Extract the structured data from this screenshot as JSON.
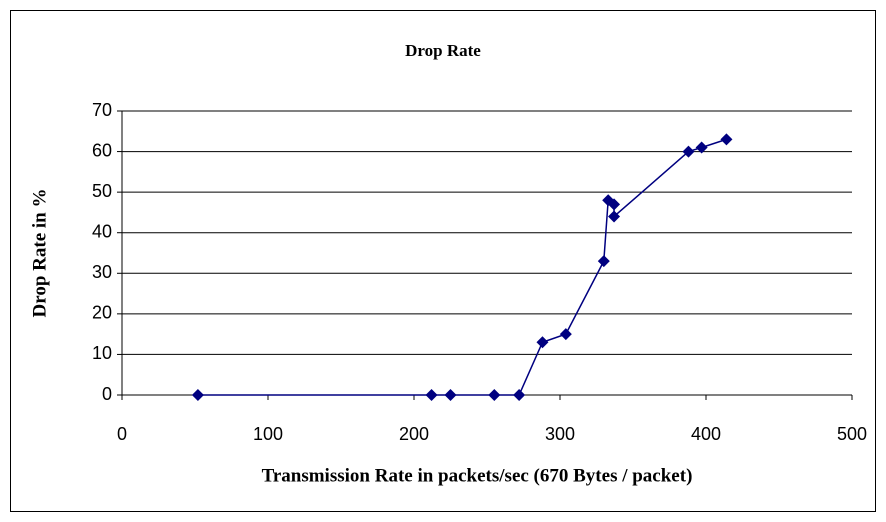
{
  "chart_data": {
    "type": "line",
    "title": "Drop Rate",
    "xlabel": "Transmission Rate in packets/sec (670 Bytes / packet)",
    "ylabel": "Drop Rate in %",
    "series": [
      {
        "name": "Drop Rate",
        "color": "#000080",
        "x": [
          52,
          212,
          225,
          255,
          272,
          288,
          304,
          330,
          333,
          337,
          337,
          388,
          397,
          414
        ],
        "values": [
          0,
          0,
          0,
          0,
          0,
          13,
          15,
          33,
          48,
          47,
          44,
          60,
          61,
          63
        ]
      }
    ],
    "xlim": [
      0,
      500
    ],
    "xticks": [
      0,
      100,
      200,
      300,
      400,
      500
    ],
    "ylim": [
      0,
      70
    ],
    "yticks": [
      0,
      10,
      20,
      30,
      40,
      50,
      60,
      70
    ],
    "grid": true
  }
}
